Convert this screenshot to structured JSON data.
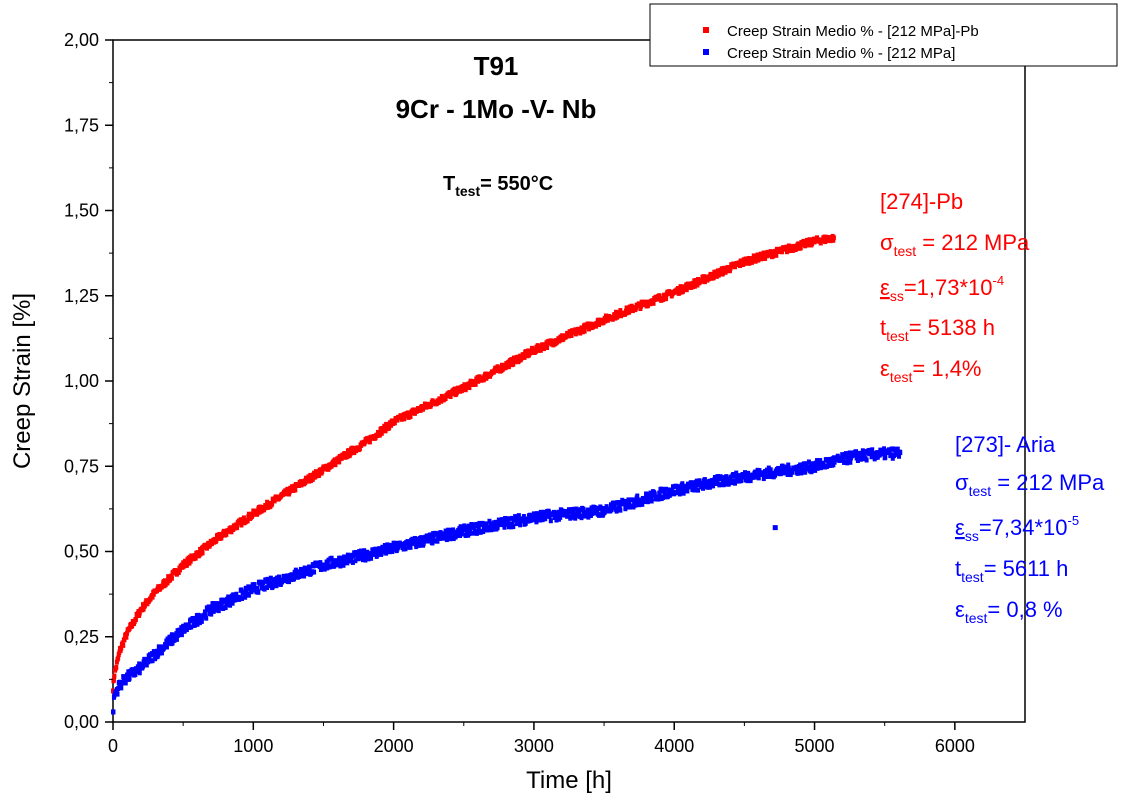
{
  "chart_data": {
    "type": "scatter",
    "title": "T91",
    "subtitle": "9Cr - 1Mo -V- Nb",
    "test_temperature": {
      "symbol": "T",
      "sub": "test",
      "rest": "= 550°C"
    },
    "xlabel": "Time [h]",
    "ylabel": "Creep Strain [%]",
    "xlim": [
      0,
      6500
    ],
    "ylim": [
      0,
      2
    ],
    "xticks": [
      0,
      1000,
      2000,
      3000,
      4000,
      5000,
      6000
    ],
    "xtick_labels": [
      "0",
      "1000",
      "2000",
      "3000",
      "4000",
      "5000",
      "6000"
    ],
    "yticks": [
      0,
      0.25,
      0.5,
      0.75,
      1.0,
      1.25,
      1.5,
      1.75,
      2.0
    ],
    "ytick_labels": [
      "0,00",
      "0,25",
      "0,50",
      "0,75",
      "1,00",
      "1,25",
      "1,50",
      "1,75",
      "2,00"
    ],
    "grid": false,
    "legend_position": "top-right",
    "series": [
      {
        "name": "Creep Strain Medio %  - [212 MPa]-Pb",
        "color": "#ff0000",
        "x": [
          0,
          10,
          50,
          100,
          200,
          300,
          500,
          750,
          1000,
          1500,
          1800,
          2000,
          2500,
          3000,
          3500,
          4000,
          4500,
          5000,
          5138
        ],
        "y": [
          0.1,
          0.14,
          0.21,
          0.26,
          0.33,
          0.38,
          0.46,
          0.54,
          0.61,
          0.74,
          0.82,
          0.88,
          0.98,
          1.09,
          1.18,
          1.26,
          1.35,
          1.41,
          1.42
        ],
        "annotation": {
          "id": "[274]-Pb",
          "sigma": {
            "sub": "test",
            "rest": " = 212 MPa"
          },
          "eps_ss": {
            "sub": "ss",
            "rest": "=1,73*10",
            "sup": "-4"
          },
          "t": {
            "sub": "test",
            "rest": "= 5138 h"
          },
          "eps_test": {
            "sub": "test",
            "rest": "= 1,4%"
          }
        }
      },
      {
        "name": "Creep Strain Medio %  - [212 MPa]",
        "color": "#0000ff",
        "x": [
          0,
          10,
          50,
          100,
          200,
          300,
          500,
          700,
          1000,
          1500,
          2000,
          2500,
          3000,
          3500,
          4000,
          4500,
          5000,
          5300,
          5611
        ],
        "y": [
          0.02,
          0.08,
          0.11,
          0.13,
          0.16,
          0.2,
          0.27,
          0.33,
          0.39,
          0.46,
          0.51,
          0.56,
          0.6,
          0.62,
          0.68,
          0.72,
          0.75,
          0.78,
          0.79
        ],
        "outlier": {
          "x": 4720,
          "y": 0.57
        },
        "annotation": {
          "id": "[273]- Aria",
          "sigma": {
            "sub": "test",
            "rest": " = 212 MPa"
          },
          "eps_ss": {
            "sub": "ss",
            "rest": "=7,34*10",
            "sup": "-5"
          },
          "t": {
            "sub": "test",
            "rest": "= 5611 h"
          },
          "eps_test": {
            "sub": "test",
            "rest": "= 0,8 %"
          }
        }
      }
    ]
  }
}
